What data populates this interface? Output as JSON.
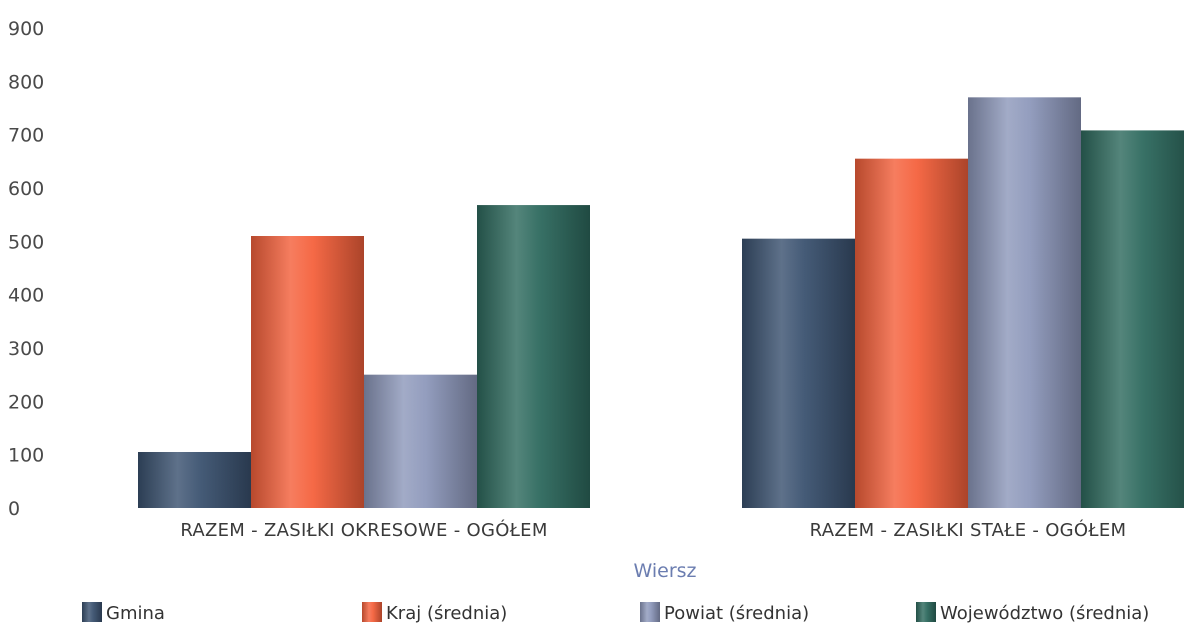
{
  "chart_data": {
    "type": "bar",
    "title": "",
    "xlabel": "Wiersz",
    "ylabel": "",
    "ylim": [
      0,
      900
    ],
    "yticks": [
      0,
      100,
      200,
      300,
      400,
      500,
      600,
      700,
      800,
      900
    ],
    "grid": false,
    "legend_position": "bottom",
    "categories": [
      "RAZEM -  ZASIŁKI OKRESOWE - OGÓŁEM",
      "RAZEM -  ZASIŁKI STAŁE - OGÓŁEM"
    ],
    "series": [
      {
        "name": "Gmina",
        "color": "#3b5270",
        "values": [
          105,
          505
        ]
      },
      {
        "name": "Kraj (średnia)",
        "color": "#f4613c",
        "values": [
          510,
          655
        ]
      },
      {
        "name": "Powiat (średnia)",
        "color": "#8d98bb",
        "values": [
          250,
          770
        ]
      },
      {
        "name": "Województwo (średnia)",
        "color": "#2e6a5e",
        "values": [
          568,
          708
        ]
      }
    ]
  }
}
